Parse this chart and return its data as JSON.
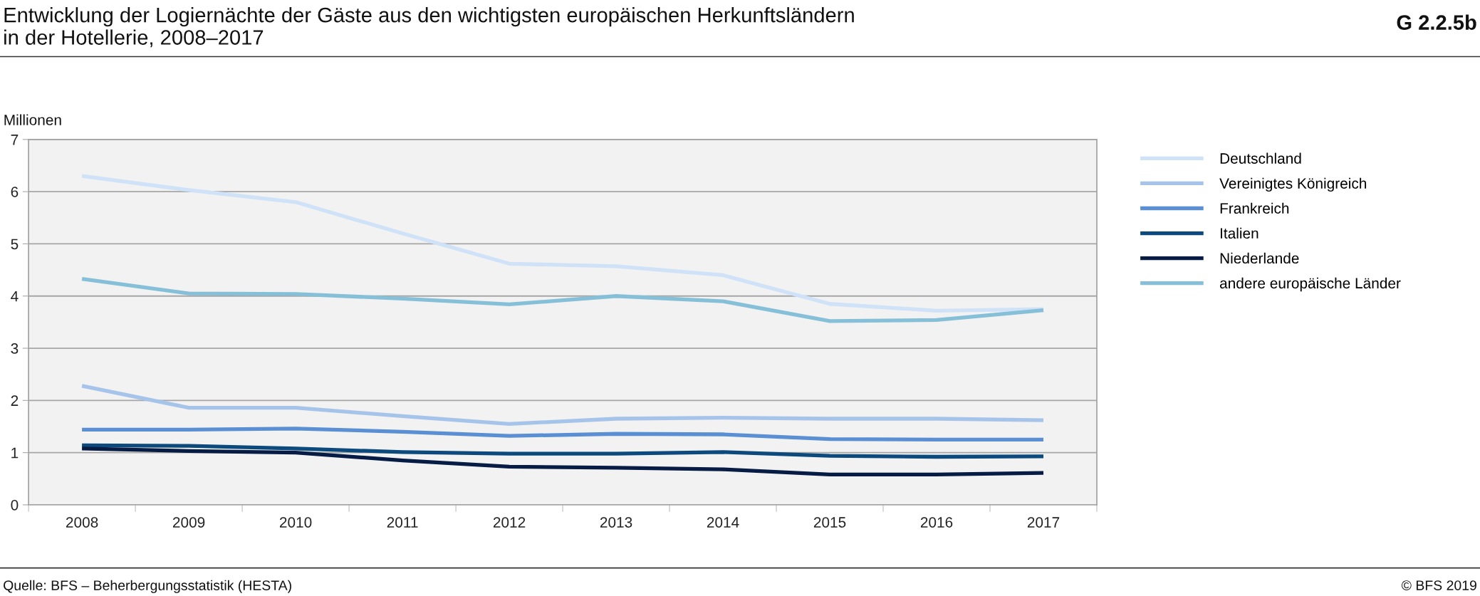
{
  "chart_data": {
    "type": "line",
    "title": "Entwicklung der Logiernächte der Gäste aus den wichtigsten europäischen Herkunftsländern\nin der Hotellerie, 2008–2017",
    "ylabel": "Millionen",
    "annotations": [
      "G 2.2.5b",
      "Quelle: BFS – Beherbergungsstatistik (HESTA)",
      "© BFS 2019"
    ],
    "categories": [
      "2008",
      "2009",
      "2010",
      "2011",
      "2012",
      "2013",
      "2014",
      "2015",
      "2016",
      "2017"
    ],
    "series": [
      {
        "name": "Deutschland",
        "color": "#cfe2f7",
        "values": [
          6.3,
          6.03,
          5.8,
          5.2,
          4.62,
          4.57,
          4.4,
          3.85,
          3.72,
          3.75
        ]
      },
      {
        "name": "Vereinigtes Königreich",
        "color": "#a6c4ea",
        "values": [
          2.28,
          1.86,
          1.86,
          1.7,
          1.55,
          1.65,
          1.67,
          1.65,
          1.65,
          1.62
        ]
      },
      {
        "name": "Frankreich",
        "color": "#5b8fd4",
        "values": [
          1.44,
          1.44,
          1.46,
          1.4,
          1.32,
          1.36,
          1.35,
          1.26,
          1.25,
          1.25
        ]
      },
      {
        "name": "Italien",
        "color": "#0c4a7e",
        "values": [
          1.14,
          1.13,
          1.08,
          1.01,
          0.98,
          0.98,
          1.01,
          0.94,
          0.92,
          0.93
        ]
      },
      {
        "name": "Niederlande",
        "color": "#061c44",
        "values": [
          1.08,
          1.03,
          1.0,
          0.85,
          0.73,
          0.71,
          0.68,
          0.58,
          0.58,
          0.61
        ]
      },
      {
        "name": "andere europäische Länder",
        "color": "#86c0d8",
        "values": [
          4.33,
          4.05,
          4.04,
          3.95,
          3.84,
          4.0,
          3.9,
          3.52,
          3.54,
          3.73
        ]
      }
    ],
    "ylim": [
      0,
      7
    ],
    "yticks": [
      0,
      1,
      2,
      3,
      4,
      5,
      6,
      7
    ],
    "grid": "y",
    "legend": "right",
    "marker": "none",
    "line_style": "solid"
  }
}
